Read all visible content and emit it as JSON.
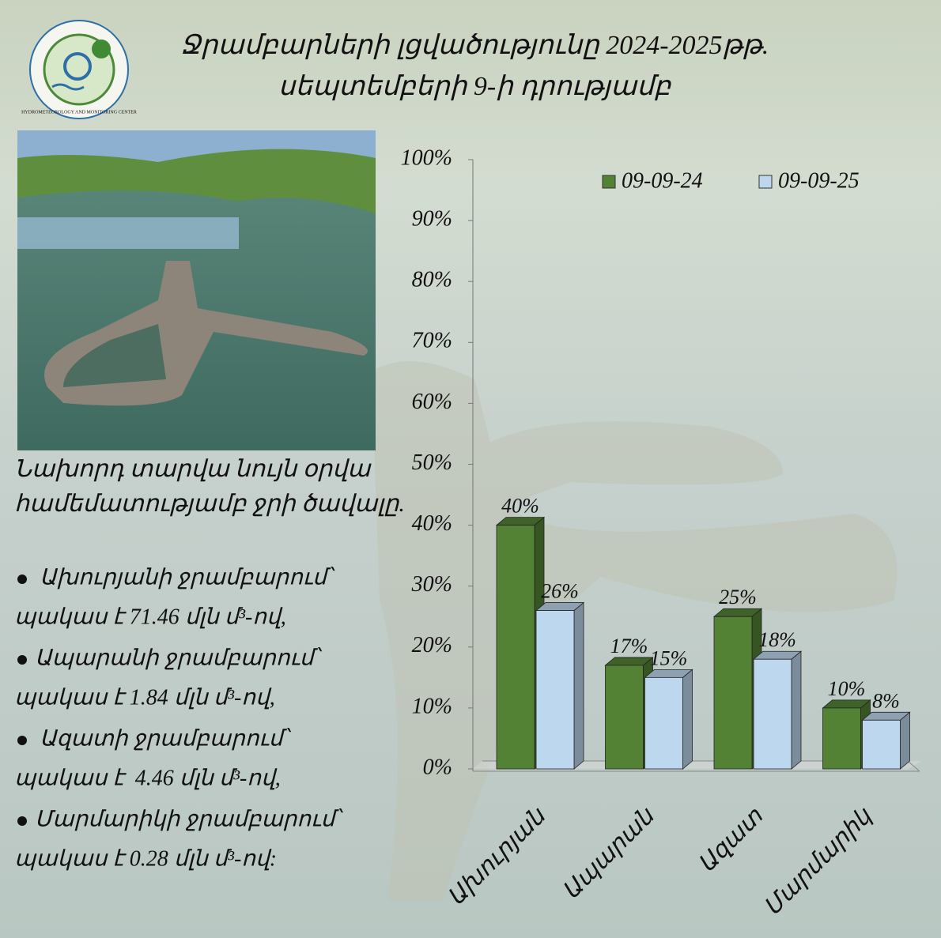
{
  "header": {
    "title": [
      "Ջրամբարների լցվածությունը 2024-2025թթ.",
      "սեպտեմբերի 9-ի դրությամբ"
    ],
    "logo_text": "HYDROMETEOROLOGY AND MONITORING CENTER"
  },
  "intro": [
    "Նախորդ տարվա նույն օրվա",
    "համեմատությամբ ջրի ծավալը."
  ],
  "items": [
    {
      "name": "Ախուրյանի ջրամբարում՝",
      "text": "պակաս է 71.46 մլն մ³-ով,"
    },
    {
      "name": "Ապարանի ջրամբարում՝",
      "text": "պակաս է 1.84 մլն մ³-ով,"
    },
    {
      "name": "Ազատի ջրամբարում՝",
      "text": "պակաս է  4.46 մլն մ³-ով,"
    },
    {
      "name": "Մարմարիկի ջրամբարում՝",
      "text": "պակաս է 0.28 մլն մ³-ով:"
    }
  ],
  "chart_data": {
    "type": "bar3d",
    "categories": [
      "Ախուրյան",
      "Ապարան",
      "Ազատ",
      "Մարմարիկ"
    ],
    "series": [
      {
        "name": "09-09-24",
        "color": "#548235",
        "values": [
          40,
          17,
          25,
          10
        ],
        "value_labels": [
          "40%",
          "17%",
          "25%",
          "10%"
        ]
      },
      {
        "name": "09-09-25",
        "color": "#bdd7ee",
        "values": [
          26,
          15,
          18,
          8
        ],
        "value_labels": [
          "26%",
          "15%",
          "18%",
          "8%"
        ]
      }
    ],
    "ylim": [
      0,
      100
    ],
    "yticks": [
      {
        "value": 0,
        "label": "0%"
      },
      {
        "value": 10,
        "label": "10%"
      },
      {
        "value": 20,
        "label": "20%"
      },
      {
        "value": 30,
        "label": "30%"
      },
      {
        "value": 40,
        "label": "40%"
      },
      {
        "value": 50,
        "label": "50%"
      },
      {
        "value": 60,
        "label": "60%"
      },
      {
        "value": 70,
        "label": "70%"
      },
      {
        "value": 80,
        "label": "80%"
      },
      {
        "value": 90,
        "label": "90%"
      },
      {
        "value": 100,
        "label": "100%"
      }
    ],
    "legend": "top-right",
    "grid": false
  }
}
